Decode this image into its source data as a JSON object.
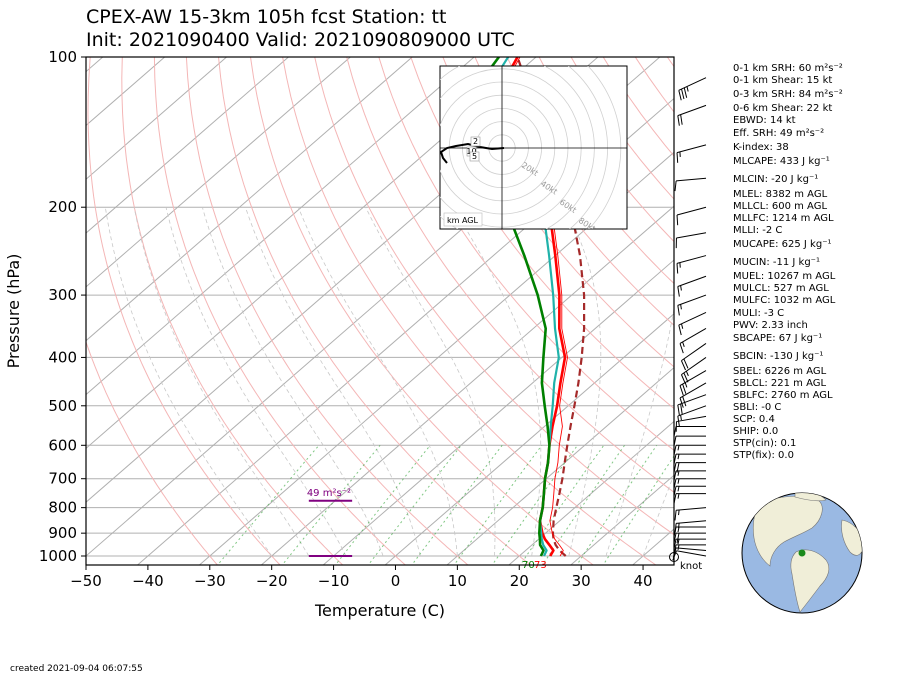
{
  "title": {
    "line1": "CPEX-AW 15-3km  105h fcst  Station: tt",
    "line2": "Init: 2021090400  Valid: 2021090809000 UTC"
  },
  "axes": {
    "xlabel": "Temperature (C)",
    "ylabel": "Pressure (hPa)",
    "xticks": [
      -50,
      -40,
      -30,
      -20,
      -10,
      0,
      10,
      20,
      30,
      40
    ],
    "yticks": [
      100,
      200,
      300,
      400,
      500,
      600,
      700,
      800,
      900,
      1000
    ],
    "xlim": [
      -50,
      45
    ],
    "ylim": [
      1050,
      100
    ]
  },
  "chart_data": {
    "type": "line",
    "scale": "skew-T log-p",
    "series": [
      {
        "key": "temperature",
        "color": "#ff0000",
        "points": [
          [
            1000,
            25.0
          ],
          [
            975,
            24.5
          ],
          [
            950,
            22.8
          ],
          [
            925,
            21.0
          ],
          [
            900,
            19.5
          ],
          [
            850,
            16.8
          ],
          [
            800,
            14.8
          ],
          [
            750,
            12.4
          ],
          [
            700,
            9.8
          ],
          [
            650,
            7.3
          ],
          [
            600,
            4.3
          ],
          [
            550,
            1.3
          ],
          [
            500,
            -1.8
          ],
          [
            450,
            -5.5
          ],
          [
            400,
            -9.5
          ],
          [
            350,
            -15.8
          ],
          [
            300,
            -22.0
          ],
          [
            250,
            -30.0
          ],
          [
            200,
            -40.0
          ],
          [
            175,
            -46.5
          ],
          [
            150,
            -56.0
          ],
          [
            125,
            -66.0
          ],
          [
            110,
            -71.0
          ],
          [
            100,
            -73.0
          ]
        ]
      },
      {
        "key": "dewpoint",
        "color": "#008000",
        "points": [
          [
            1000,
            23.5
          ],
          [
            975,
            22.9
          ],
          [
            950,
            21.3
          ],
          [
            925,
            20.2
          ],
          [
            900,
            19.0
          ],
          [
            850,
            16.8
          ],
          [
            800,
            14.8
          ],
          [
            750,
            12.4
          ],
          [
            700,
            9.8
          ],
          [
            650,
            7.3
          ],
          [
            600,
            4.3
          ],
          [
            550,
            0.5
          ],
          [
            500,
            -3.8
          ],
          [
            450,
            -8.5
          ],
          [
            400,
            -13.0
          ],
          [
            350,
            -18.0
          ],
          [
            300,
            -25.5
          ],
          [
            250,
            -35.0
          ],
          [
            200,
            -47.0
          ],
          [
            175,
            -54.0
          ],
          [
            150,
            -62.0
          ],
          [
            125,
            -70.0
          ],
          [
            115,
            -74.0
          ],
          [
            100,
            -76.0
          ]
        ]
      },
      {
        "key": "wetbulb",
        "color": "#20b2aa",
        "points": [
          [
            1000,
            24.0
          ],
          [
            975,
            23.4
          ],
          [
            950,
            21.8
          ],
          [
            925,
            20.5
          ],
          [
            900,
            19.3
          ],
          [
            850,
            16.8
          ],
          [
            800,
            14.8
          ],
          [
            750,
            12.4
          ],
          [
            700,
            9.8
          ],
          [
            650,
            7.3
          ],
          [
            600,
            4.3
          ],
          [
            550,
            1.0
          ],
          [
            500,
            -2.5
          ],
          [
            450,
            -6.5
          ],
          [
            400,
            -10.5
          ],
          [
            350,
            -16.5
          ],
          [
            300,
            -23.0
          ],
          [
            250,
            -31.0
          ],
          [
            200,
            -41.0
          ],
          [
            175,
            -48.0
          ],
          [
            150,
            -57.5
          ],
          [
            125,
            -67.0
          ],
          [
            115,
            -72.0
          ],
          [
            100,
            -74.5
          ]
        ]
      },
      {
        "key": "parcel",
        "color": "#a52a2a",
        "points": [
          [
            1000,
            27.5
          ],
          [
            975,
            25.5
          ],
          [
            950,
            23.8
          ],
          [
            925,
            22.4
          ],
          [
            900,
            21.2
          ],
          [
            850,
            19.0
          ],
          [
            800,
            17.0
          ],
          [
            750,
            14.9
          ],
          [
            700,
            12.6
          ],
          [
            650,
            10.0
          ],
          [
            600,
            7.2
          ],
          [
            550,
            4.2
          ],
          [
            500,
            1.0
          ],
          [
            450,
            -2.6
          ],
          [
            400,
            -6.8
          ],
          [
            350,
            -11.8
          ],
          [
            300,
            -18.0
          ],
          [
            250,
            -26.0
          ],
          [
            200,
            -36.5
          ],
          [
            175,
            -43.5
          ],
          [
            150,
            -51.5
          ],
          [
            125,
            -61.0
          ],
          [
            110,
            -68.0
          ],
          [
            100,
            -73.0
          ]
        ]
      }
    ],
    "barbs": [
      {
        "p": 1000,
        "spd": 8,
        "dir": 100
      },
      {
        "p": 975,
        "spd": 12,
        "dir": 95
      },
      {
        "p": 950,
        "spd": 15,
        "dir": 90
      },
      {
        "p": 925,
        "spd": 17,
        "dir": 90
      },
      {
        "p": 900,
        "spd": 18,
        "dir": 90
      },
      {
        "p": 875,
        "spd": 17,
        "dir": 90
      },
      {
        "p": 850,
        "spd": 15,
        "dir": 85
      },
      {
        "p": 800,
        "spd": 13,
        "dir": 85
      },
      {
        "p": 750,
        "spd": 14,
        "dir": 90
      },
      {
        "p": 725,
        "spd": 16,
        "dir": 90
      },
      {
        "p": 700,
        "spd": 17,
        "dir": 90
      },
      {
        "p": 675,
        "spd": 17,
        "dir": 90
      },
      {
        "p": 650,
        "spd": 18,
        "dir": 90
      },
      {
        "p": 625,
        "spd": 17,
        "dir": 90
      },
      {
        "p": 600,
        "spd": 14,
        "dir": 90
      },
      {
        "p": 575,
        "spd": 11,
        "dir": 90
      },
      {
        "p": 550,
        "spd": 9,
        "dir": 90
      },
      {
        "p": 525,
        "spd": 12,
        "dir": 80
      },
      {
        "p": 500,
        "spd": 16,
        "dir": 70
      },
      {
        "p": 475,
        "spd": 18,
        "dir": 70
      },
      {
        "p": 450,
        "spd": 22,
        "dir": 60
      },
      {
        "p": 425,
        "spd": 24,
        "dir": 60
      },
      {
        "p": 400,
        "spd": 25,
        "dir": 55
      },
      {
        "p": 375,
        "spd": 22,
        "dir": 55
      },
      {
        "p": 350,
        "spd": 17,
        "dir": 60
      },
      {
        "p": 325,
        "spd": 16,
        "dir": 65
      },
      {
        "p": 300,
        "spd": 15,
        "dir": 70
      },
      {
        "p": 275,
        "spd": 14,
        "dir": 70
      },
      {
        "p": 250,
        "spd": 14,
        "dir": 75
      },
      {
        "p": 225,
        "spd": 12,
        "dir": 80
      },
      {
        "p": 200,
        "spd": 10,
        "dir": 75
      },
      {
        "p": 175,
        "spd": 9,
        "dir": 85
      },
      {
        "p": 150,
        "spd": 14,
        "dir": 75
      },
      {
        "p": 125,
        "spd": 22,
        "dir": 70
      },
      {
        "p": 110,
        "spd": 35,
        "dir": 65
      }
    ],
    "srh_markers": [
      {
        "label": "49 m²s⁻²",
        "p": 775,
        "t_from": -14,
        "t_to": -7
      }
    ],
    "surface_marker": {
      "p": 1000,
      "t_from": -14,
      "t_to": -7
    },
    "sfc_labels": {
      "dew": "70",
      "temp": "73"
    },
    "barb_unit": "knot",
    "hodograph": {
      "ring_labels": [
        "20kt",
        "40kt",
        "60kt",
        "80kt"
      ],
      "height_labels": [
        "2",
        "10",
        "5"
      ],
      "caption": "km AGL"
    }
  },
  "indices": [
    {
      "label": "0-1 km SRH: 60 m²s⁻²"
    },
    {
      "label": "0-1 km Shear: 15 kt"
    },
    {
      "label": "0-3 km SRH: 84 m²s⁻²"
    },
    {
      "label": "0-6 km Shear: 22 kt"
    },
    {
      "label": "EBWD: 14 kt"
    },
    {
      "label": "Eff. SRH: 49 m²s⁻²"
    },
    {
      "label": "K-index: 38"
    },
    {
      "label": "MLCAPE: 433 J kg⁻¹"
    },
    {
      "label": "MLCIN: -20 J kg⁻¹"
    },
    {
      "label": "MLEL: 8382 m AGL"
    },
    {
      "label": "MLLCL: 600 m AGL"
    },
    {
      "label": "MLLFC: 1214 m AGL"
    },
    {
      "label": "MLLI: -2 C"
    },
    {
      "label": "MUCAPE: 625 J kg⁻¹"
    },
    {
      "label": "MUCIN: -11 J kg⁻¹"
    },
    {
      "label": "MUEL: 10267 m AGL"
    },
    {
      "label": "MULCL: 527 m AGL"
    },
    {
      "label": "MULFC: 1032 m AGL"
    },
    {
      "label": "MULI: -3 C"
    },
    {
      "label": "PWV: 2.33 inch"
    },
    {
      "label": "SBCAPE: 67 J kg⁻¹"
    },
    {
      "label": "SBCIN: -130 J kg⁻¹"
    },
    {
      "label": "SBEL: 6226 m AGL"
    },
    {
      "label": "SBLCL: 221 m AGL"
    },
    {
      "label": "SBLFC: 2760 m AGL"
    },
    {
      "label": "SBLI: -0 C"
    },
    {
      "label": "SCP: 0.4"
    },
    {
      "label": "SHIP: 0.0"
    },
    {
      "label": "STP(cin): 0.1"
    },
    {
      "label": "STP(fix): 0.0"
    }
  ],
  "created": "created 2021-09-04 06:07:55",
  "colors": {
    "temperature": "#ff0000",
    "dewpoint": "#008000",
    "wetbulb": "#20b2aa",
    "parcel": "#a52a2a",
    "srh": "#800080",
    "isotherm": "#b0b0b0",
    "dry_adiabat": "#f4b6b6",
    "mixing_ratio": "#4caf50",
    "ocean": "#9ab9e3",
    "land": "#f0eed8"
  }
}
